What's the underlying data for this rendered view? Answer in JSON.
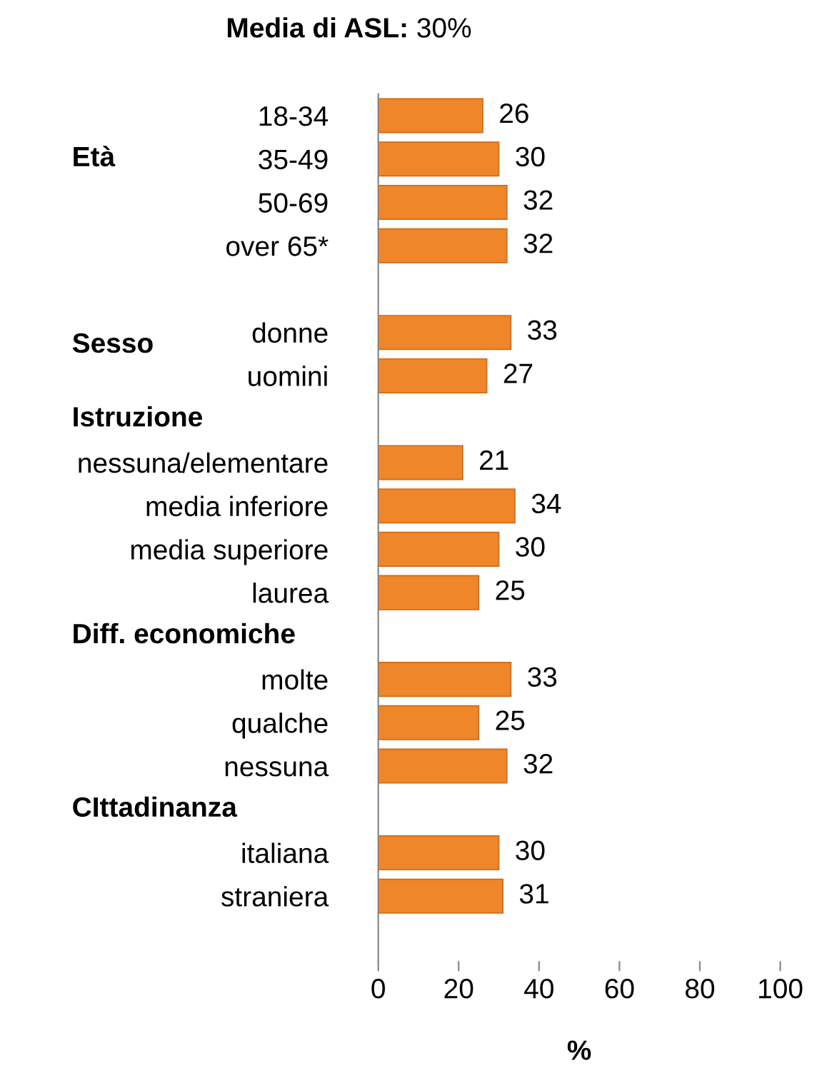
{
  "chart_data": {
    "type": "bar",
    "orientation": "horizontal",
    "title": "Media di ASL: 30%",
    "xlabel": "%",
    "categories": [
      "18-34",
      "35-49",
      "50-69",
      "over 65*",
      null,
      "donne",
      "uomini",
      null,
      "nessuna/elementare",
      "media inferiore",
      "media superiore",
      "laurea",
      null,
      "molte",
      "qualche",
      "nessuna",
      null,
      "italiana",
      "straniera",
      null
    ],
    "values": [
      26,
      30,
      32,
      32,
      null,
      33,
      27,
      null,
      21,
      34,
      30,
      25,
      null,
      33,
      25,
      32,
      null,
      30,
      31,
      null
    ],
    "color": "#f0862a",
    "data_labels": true,
    "xlim": [
      0,
      100
    ],
    "xticks": [
      0,
      20,
      40,
      60,
      80,
      100
    ],
    "grid": false,
    "annotations": [
      "Età",
      "Sesso",
      "Istruzione",
      "Diff. economiche",
      "CIttadinanza"
    ]
  }
}
